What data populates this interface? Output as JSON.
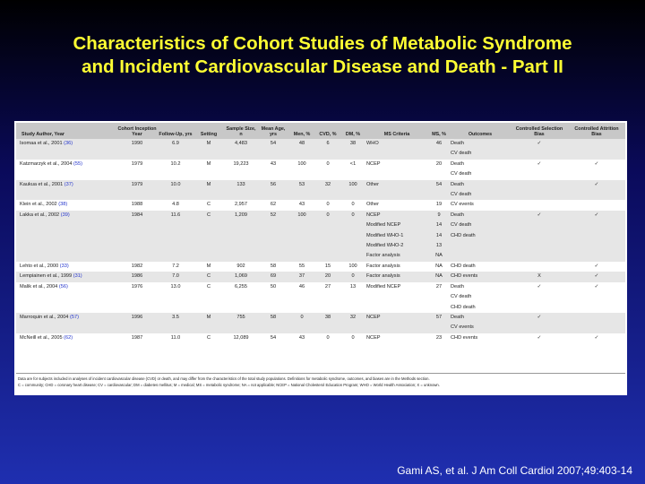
{
  "title": {
    "line1": "Characteristics of Cohort Studies of Metabolic Syndrome",
    "line2": "and Incident Cardiovascular Disease and Death - Part II"
  },
  "table": {
    "headers": {
      "author": "Study Author, Year",
      "cohort": "Cohort Inception Year",
      "followup": "Follow-Up, yrs",
      "setting": "Setting",
      "sample": "Sample Size, n",
      "age": "Mean Age, yrs",
      "men": "Men, %",
      "cvd": "CVD, %",
      "dm": "DM, %",
      "criteria": "MS Criteria",
      "ms": "MS, %",
      "outcomes": "Outcomes",
      "selection": "Controlled Selection Bias",
      "attrition": "Controlled Attrition Bias"
    },
    "rows": [
      {
        "author": "Isomaa et al., 2001",
        "ref": "(36)",
        "cohort": "1990",
        "followup": "6.9",
        "setting": "M",
        "sample": "4,483",
        "age": "54",
        "men": "48",
        "cvd": "6",
        "dm": "38",
        "criteria": [
          "WHO"
        ],
        "ms": [
          "46"
        ],
        "outcomes": [
          "Death",
          "CV death"
        ],
        "selection": "✓",
        "attrition": ""
      },
      {
        "author": "Katzmarzyk et al., 2004",
        "ref": "(55)",
        "cohort": "1979",
        "followup": "10.2",
        "setting": "M",
        "sample": "19,223",
        "age": "43",
        "men": "100",
        "cvd": "0",
        "dm": "<1",
        "criteria": [
          "NCEP"
        ],
        "ms": [
          "20"
        ],
        "outcomes": [
          "Death",
          "CV death"
        ],
        "selection": "✓",
        "attrition": "✓"
      },
      {
        "author": "Kaukua et al., 2001",
        "ref": "(37)",
        "cohort": "1979",
        "followup": "10.0",
        "setting": "M",
        "sample": "133",
        "age": "56",
        "men": "53",
        "cvd": "32",
        "dm": "100",
        "criteria": [
          "Other"
        ],
        "ms": [
          "54"
        ],
        "outcomes": [
          "Death",
          "CV death"
        ],
        "selection": "",
        "attrition": "✓"
      },
      {
        "author": "Klein et al., 2002",
        "ref": "(38)",
        "cohort": "1988",
        "followup": "4.8",
        "setting": "C",
        "sample": "2,957",
        "age": "62",
        "men": "43",
        "cvd": "0",
        "dm": "0",
        "criteria": [
          "Other"
        ],
        "ms": [
          "19"
        ],
        "outcomes": [
          "CV events"
        ],
        "selection": "",
        "attrition": ""
      },
      {
        "author": "Lakka et al., 2002",
        "ref": "(39)",
        "cohort": "1984",
        "followup": "11.6",
        "setting": "C",
        "sample": "1,209",
        "age": "52",
        "men": "100",
        "cvd": "0",
        "dm": "0",
        "criteria": [
          "NCEP",
          "Modified NCEP",
          "Modified WHO-1",
          "Modified WHO-2",
          "Factor analysis"
        ],
        "ms": [
          "9",
          "14",
          "14",
          "13",
          "NA"
        ],
        "outcomes": [
          "Death",
          "CV death",
          "CHD death"
        ],
        "selection": "✓",
        "attrition": "✓"
      },
      {
        "author": "Lehto et al., 2000",
        "ref": "(33)",
        "cohort": "1982",
        "followup": "7.2",
        "setting": "M",
        "sample": "902",
        "age": "58",
        "men": "55",
        "cvd": "15",
        "dm": "100",
        "criteria": [
          "Factor analysis"
        ],
        "ms": [
          "NA"
        ],
        "outcomes": [
          "CHD death"
        ],
        "selection": "",
        "attrition": "✓"
      },
      {
        "author": "Lempiainen et al., 1999",
        "ref": "(31)",
        "cohort": "1986",
        "followup": "7.0",
        "setting": "C",
        "sample": "1,069",
        "age": "69",
        "men": "37",
        "cvd": "20",
        "dm": "0",
        "criteria": [
          "Factor analysis"
        ],
        "ms": [
          "NA"
        ],
        "outcomes": [
          "CHD events"
        ],
        "selection": "X",
        "attrition": "✓"
      },
      {
        "author": "Malik et al., 2004",
        "ref": "(56)",
        "cohort": "1976",
        "followup": "13.0",
        "setting": "C",
        "sample": "6,255",
        "age": "50",
        "men": "46",
        "cvd": "27",
        "dm": "13",
        "criteria": [
          "Modified NCEP"
        ],
        "ms": [
          "27"
        ],
        "outcomes": [
          "Death",
          "CV death",
          "CHD death"
        ],
        "selection": "✓",
        "attrition": "✓"
      },
      {
        "author": "Marroquin et al., 2004",
        "ref": "(57)",
        "cohort": "1996",
        "followup": "3.5",
        "setting": "M",
        "sample": "755",
        "age": "58",
        "men": "0",
        "cvd": "38",
        "dm": "32",
        "criteria": [
          "NCEP"
        ],
        "ms": [
          "57"
        ],
        "outcomes": [
          "Death",
          "CV events"
        ],
        "selection": "✓",
        "attrition": ""
      },
      {
        "author": "McNeill et al., 2005",
        "ref": "(62)",
        "cohort": "1987",
        "followup": "11.0",
        "setting": "C",
        "sample": "12,089",
        "age": "54",
        "men": "43",
        "cvd": "0",
        "dm": "0",
        "criteria": [
          "NCEP"
        ],
        "ms": [
          "23"
        ],
        "outcomes": [
          "CHD events"
        ],
        "selection": "✓",
        "attrition": "✓"
      }
    ],
    "footnote_line1": "Data are for subjects included in analyses of incident cardiovascular disease (CVD) or death, and may differ from the characteristics of the total study populations. Definitions for metabolic syndrome, outcomes, and biases are in the Methods section.",
    "footnote_line2": "C = community; CHD = coronary heart disease; CV = cardiovascular; DM = diabetes mellitus; M = medical; MS = metabolic syndrome; NA = not applicable; NCEP = National Cholesterol Education Program; WHO = World Health Association; X = unknown."
  },
  "citation": "Gami AS, et al. J Am Coll Cardiol 2007;49:403-14"
}
